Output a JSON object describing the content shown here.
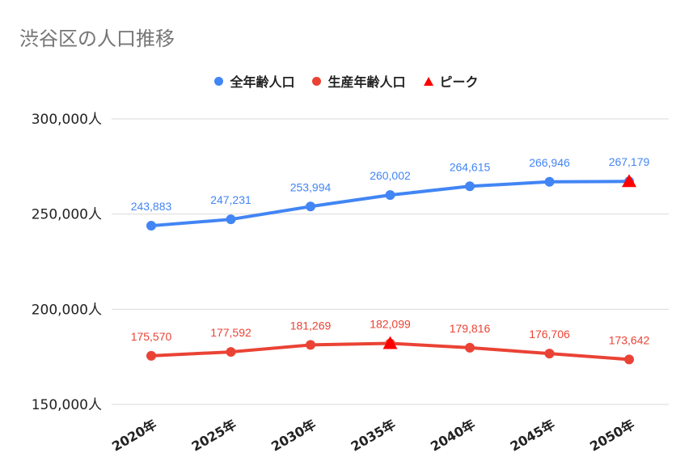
{
  "chart_data": {
    "type": "line",
    "title": "渋谷区の人口推移",
    "categories": [
      "2020年",
      "2025年",
      "2030年",
      "2035年",
      "2040年",
      "2045年",
      "2050年"
    ],
    "series": [
      {
        "name": "全年齢人口",
        "color": "#4285f4",
        "values": [
          243883,
          247231,
          253994,
          260002,
          264615,
          266946,
          267179
        ],
        "labels": [
          "243,883",
          "247,231",
          "253,994",
          "260,002",
          "264,615",
          "266,946",
          "267,179"
        ]
      },
      {
        "name": "生産年齢人口",
        "color": "#ea4335",
        "values": [
          175570,
          177592,
          181269,
          182099,
          179816,
          176706,
          173642
        ],
        "labels": [
          "175,570",
          "177,592",
          "181,269",
          "182,099",
          "179,816",
          "176,706",
          "173,642"
        ]
      }
    ],
    "peak": {
      "name": "ピーク",
      "color": "#ff0000",
      "points": [
        {
          "category": "2035年",
          "value": 182099
        },
        {
          "category": "2050年",
          "value": 267179
        }
      ]
    },
    "yticks": [
      150000,
      200000,
      250000,
      300000
    ],
    "ytick_labels": [
      "150,000人",
      "200,000人",
      "250,000人",
      "300,000人"
    ],
    "ylim": [
      150000,
      300000
    ],
    "grid": true,
    "legend_position": "top-center"
  }
}
